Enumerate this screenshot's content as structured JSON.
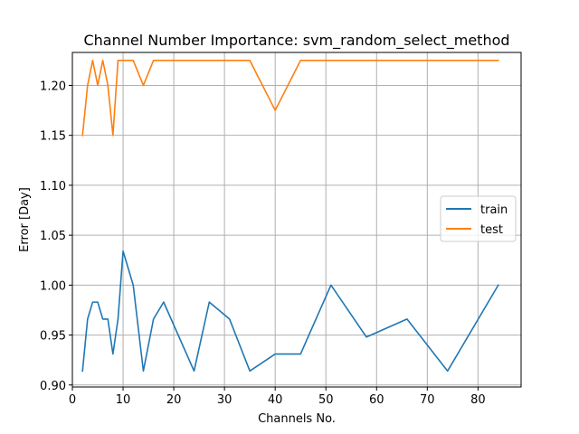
{
  "chart_data": {
    "type": "line",
    "title": "Channel Number Importance: svm_random_select_method",
    "xlabel": "Channels No.",
    "ylabel": "Error [Day]",
    "xlim": [
      0,
      88.5
    ],
    "ylim": [
      0.898,
      1.233
    ],
    "xticks": [
      0,
      10,
      20,
      30,
      40,
      50,
      60,
      70,
      80
    ],
    "yticks": [
      0.9,
      0.95,
      1.0,
      1.05,
      1.1,
      1.15,
      1.2
    ],
    "xtick_labels": [
      "0",
      "10",
      "20",
      "30",
      "40",
      "50",
      "60",
      "70",
      "80"
    ],
    "ytick_labels": [
      "0.90",
      "0.95",
      "1.00",
      "1.05",
      "1.10",
      "1.15",
      "1.20"
    ],
    "grid": true,
    "legend_position": "center-right",
    "series": [
      {
        "name": "train",
        "color": "#1f77b4",
        "x": [
          2,
          3,
          4,
          5,
          6,
          7,
          8,
          9,
          10,
          12,
          14,
          16,
          18,
          24,
          27,
          31,
          35,
          40,
          45,
          51,
          58,
          66,
          74,
          84
        ],
        "y": [
          0.914,
          0.966,
          0.983,
          0.983,
          0.966,
          0.966,
          0.931,
          0.966,
          1.034,
          1.0,
          0.914,
          0.966,
          0.983,
          0.914,
          0.983,
          0.966,
          0.914,
          0.931,
          0.931,
          1.0,
          0.948,
          0.966,
          0.914,
          1.0
        ]
      },
      {
        "name": "test",
        "color": "#ff7f0e",
        "x": [
          2,
          3,
          4,
          5,
          6,
          7,
          8,
          9,
          10,
          12,
          14,
          16,
          18,
          24,
          27,
          31,
          35,
          40,
          45,
          51,
          58,
          66,
          74,
          84
        ],
        "y": [
          1.15,
          1.2,
          1.225,
          1.2,
          1.225,
          1.2,
          1.15,
          1.225,
          1.225,
          1.225,
          1.2,
          1.225,
          1.225,
          1.225,
          1.225,
          1.225,
          1.225,
          1.175,
          1.225,
          1.225,
          1.225,
          1.225,
          1.225,
          1.225
        ]
      }
    ]
  }
}
